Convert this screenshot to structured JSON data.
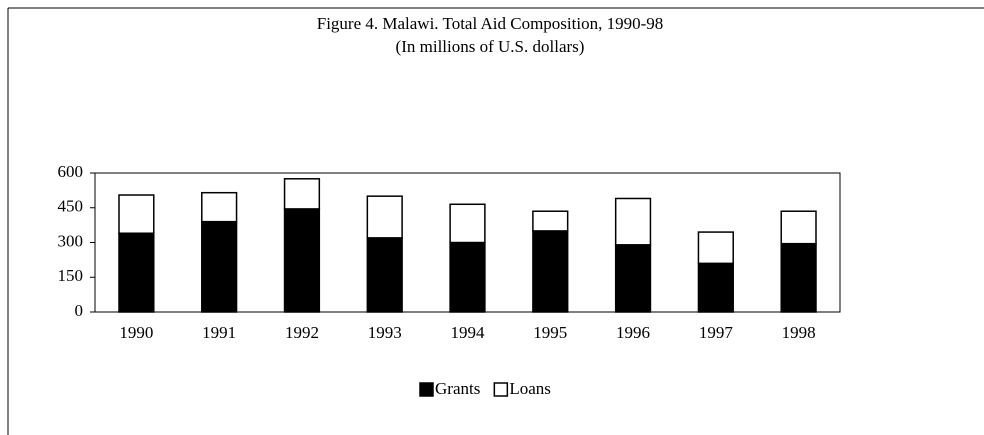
{
  "chart_data": {
    "type": "stacked-bar",
    "title": "Figure 4. Malawi. Total Aid Composition, 1990-98",
    "subtitle": "(In millions of U.S. dollars)",
    "categories": [
      "1990",
      "1991",
      "1992",
      "1993",
      "1994",
      "1995",
      "1996",
      "1997",
      "1998"
    ],
    "series": [
      {
        "name": "Grants",
        "color": "#000000",
        "values": [
          340,
          390,
          445,
          320,
          300,
          350,
          290,
          210,
          295
        ]
      },
      {
        "name": "Loans",
        "color": "#ffffff",
        "values": [
          165,
          125,
          130,
          180,
          165,
          85,
          200,
          135,
          140
        ]
      }
    ],
    "ylim": [
      0,
      600
    ],
    "yticks": [
      0,
      150,
      300,
      450,
      600
    ],
    "grid": false
  }
}
